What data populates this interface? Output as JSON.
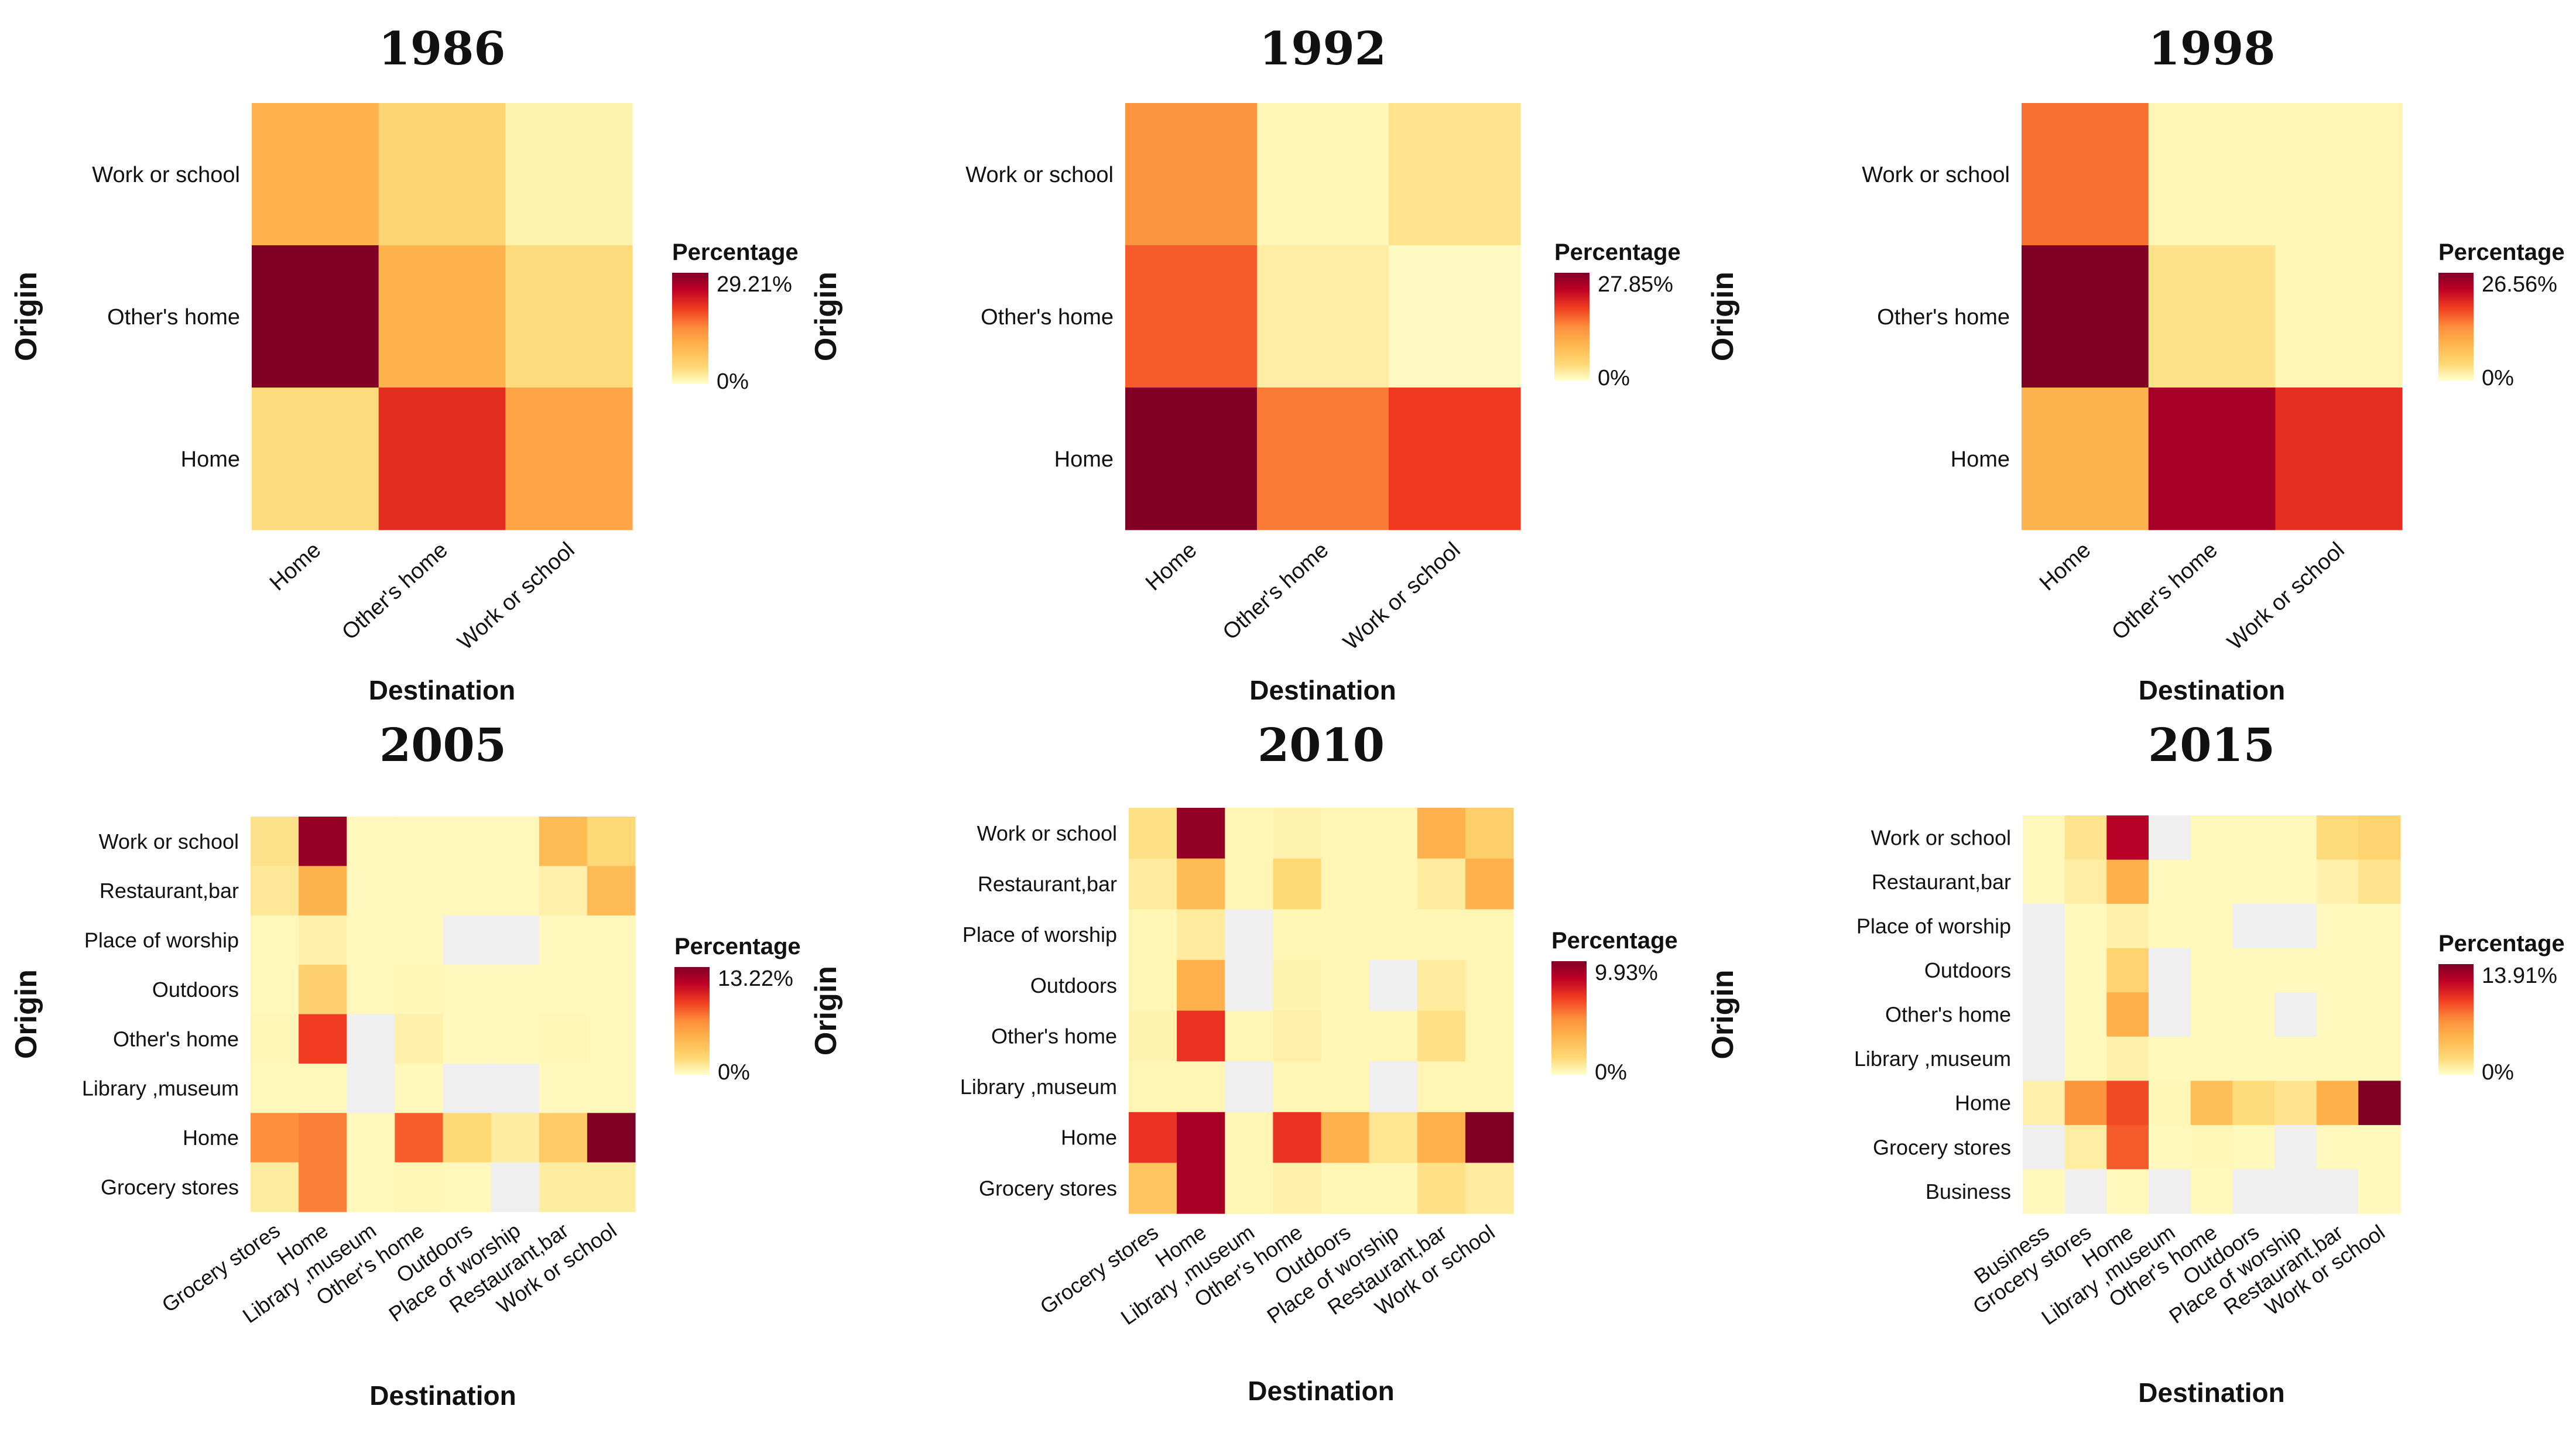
{
  "chart_data": [
    {
      "type": "heatmap",
      "title": "1986",
      "xlabel": "Destination",
      "ylabel": "Origin",
      "x_categories": [
        "Home",
        "Other's home",
        "Work or school"
      ],
      "y_categories_top_to_bottom": [
        "Work or school",
        "Other's home",
        "Home"
      ],
      "values": [
        [
          10.0,
          5.0,
          1.5
        ],
        [
          29.21,
          10.0,
          4.0
        ],
        [
          4.0,
          21.0,
          12.0
        ]
      ],
      "legend_title": "Percentage",
      "legend_max_label": "29.21%",
      "legend_min_label": "0%",
      "scale_max": 29.21
    },
    {
      "type": "heatmap",
      "title": "1992",
      "xlabel": "Destination",
      "ylabel": "Origin",
      "x_categories": [
        "Home",
        "Other's home",
        "Work or school"
      ],
      "y_categories_top_to_bottom": [
        "Work or school",
        "Other's home",
        "Home"
      ],
      "values": [
        [
          13.0,
          1.0,
          3.0
        ],
        [
          17.0,
          2.0,
          0.5
        ],
        [
          27.85,
          15.0,
          19.0
        ]
      ],
      "legend_title": "Percentage",
      "legend_max_label": "27.85%",
      "legend_min_label": "0%",
      "scale_max": 27.85
    },
    {
      "type": "heatmap",
      "title": "1998",
      "xlabel": "Destination",
      "ylabel": "Origin",
      "x_categories": [
        "Home",
        "Other's home",
        "Work or school"
      ],
      "y_categories_top_to_bottom": [
        "Work or school",
        "Other's home",
        "Home"
      ],
      "values": [
        [
          15.0,
          1.0,
          1.0
        ],
        [
          26.56,
          3.0,
          1.0
        ],
        [
          9.0,
          24.0,
          19.0
        ]
      ],
      "legend_title": "Percentage",
      "legend_max_label": "26.56%",
      "legend_min_label": "0%",
      "scale_max": 26.56
    },
    {
      "type": "heatmap",
      "title": "2005",
      "xlabel": "Destination",
      "ylabel": "Origin",
      "x_categories": [
        "Grocery stores",
        "Home",
        "Library ,museum",
        "Other's home",
        "Outdoors",
        "Place of worship",
        "Restaurant,bar",
        "Work or school"
      ],
      "y_categories_top_to_bottom": [
        "Work or school",
        "Restaurant,bar",
        "Place of worship",
        "Outdoors",
        "Other's home",
        "Library ,museum",
        "Home",
        "Grocery stores"
      ],
      "values": [
        [
          1.5,
          12.5,
          0.4,
          0.4,
          0.4,
          0.4,
          4.0,
          2.0
        ],
        [
          1.2,
          4.5,
          0.4,
          0.4,
          0.4,
          0.4,
          0.8,
          4.0
        ],
        [
          0.4,
          0.8,
          0.4,
          0.4,
          null,
          null,
          0.4,
          0.4
        ],
        [
          0.4,
          2.5,
          0.4,
          0.5,
          0.4,
          0.4,
          0.4,
          0.4
        ],
        [
          0.5,
          9.0,
          null,
          0.8,
          0.4,
          0.4,
          0.5,
          0.4
        ],
        [
          0.4,
          0.4,
          null,
          0.4,
          null,
          null,
          0.4,
          0.4
        ],
        [
          6.5,
          7.0,
          0.4,
          8.0,
          2.0,
          1.0,
          3.0,
          13.22
        ],
        [
          1.0,
          7.0,
          0.4,
          0.5,
          0.4,
          null,
          1.0,
          1.0
        ]
      ],
      "legend_title": "Percentage",
      "legend_max_label": "13.22%",
      "legend_min_label": "0%",
      "scale_max": 13.22
    },
    {
      "type": "heatmap",
      "title": "2010",
      "xlabel": "Destination",
      "ylabel": "Origin",
      "x_categories": [
        "Grocery stores",
        "Home",
        "Library ,museum",
        "Other's home",
        "Outdoors",
        "Place of worship",
        "Restaurant,bar",
        "Work or school"
      ],
      "y_categories_top_to_bottom": [
        "Work or school",
        "Restaurant,bar",
        "Place of worship",
        "Outdoors",
        "Other's home",
        "Library ,museum",
        "Home",
        "Grocery stores"
      ],
      "values": [
        [
          1.2,
          9.5,
          0.4,
          0.5,
          0.4,
          0.4,
          3.5,
          2.0
        ],
        [
          0.8,
          3.0,
          0.4,
          1.5,
          0.4,
          0.4,
          0.8,
          3.5
        ],
        [
          0.4,
          0.8,
          null,
          0.4,
          0.4,
          0.4,
          0.4,
          0.4
        ],
        [
          0.4,
          3.5,
          null,
          0.5,
          0.4,
          null,
          0.8,
          0.4
        ],
        [
          0.5,
          7.0,
          0.4,
          0.6,
          0.4,
          0.4,
          1.2,
          0.4
        ],
        [
          0.4,
          0.4,
          null,
          0.4,
          0.4,
          null,
          0.4,
          0.4
        ],
        [
          7.0,
          9.0,
          0.4,
          7.0,
          3.5,
          1.0,
          3.5,
          9.93
        ],
        [
          2.5,
          9.0,
          0.4,
          0.6,
          0.4,
          0.4,
          1.2,
          0.8
        ]
      ],
      "legend_title": "Percentage",
      "legend_max_label": "9.93%",
      "legend_min_label": "0%",
      "scale_max": 9.93
    },
    {
      "type": "heatmap",
      "title": "2015",
      "xlabel": "Destination",
      "ylabel": "Origin",
      "x_categories": [
        "Business",
        "Grocery stores",
        "Home",
        "Library ,museum",
        "Other's home",
        "Outdoors",
        "Place of worship",
        "Restaurant,bar",
        "Work or school"
      ],
      "y_categories_top_to_bottom": [
        "Work or school",
        "Restaurant,bar",
        "Place of worship",
        "Outdoors",
        "Other's home",
        "Library ,museum",
        "Home",
        "Grocery stores",
        "Business"
      ],
      "values": [
        [
          0.4,
          1.5,
          12.0,
          null,
          0.4,
          0.4,
          0.4,
          2.0,
          2.5
        ],
        [
          0.4,
          1.0,
          5.0,
          0.4,
          0.4,
          0.4,
          0.4,
          0.8,
          1.5
        ],
        [
          null,
          0.4,
          0.8,
          0.4,
          0.4,
          null,
          null,
          0.4,
          0.4
        ],
        [
          null,
          0.4,
          2.5,
          null,
          0.4,
          0.4,
          0.4,
          0.4,
          0.4
        ],
        [
          null,
          0.4,
          5.0,
          null,
          0.4,
          0.4,
          null,
          0.4,
          0.4
        ],
        [
          null,
          0.4,
          0.8,
          0.4,
          0.4,
          0.4,
          0.4,
          0.4,
          0.4
        ],
        [
          0.8,
          6.5,
          9.0,
          0.5,
          4.0,
          2.0,
          1.5,
          5.0,
          13.91
        ],
        [
          null,
          1.0,
          8.5,
          0.4,
          0.5,
          0.4,
          null,
          0.4,
          0.4
        ],
        [
          0.4,
          null,
          0.4,
          null,
          0.4,
          null,
          null,
          null,
          0.4
        ]
      ],
      "legend_title": "Percentage",
      "legend_max_label": "13.91%",
      "legend_min_label": "0%",
      "scale_max": 13.91
    }
  ],
  "colors": {
    "low": "#ffffcc",
    "mid_low": "#fed976",
    "mid": "#feb24c",
    "mid_high": "#fd8d3c",
    "high": "#f03b20",
    "very_high": "#bd0026",
    "max": "#800026",
    "na": "#efefef"
  }
}
